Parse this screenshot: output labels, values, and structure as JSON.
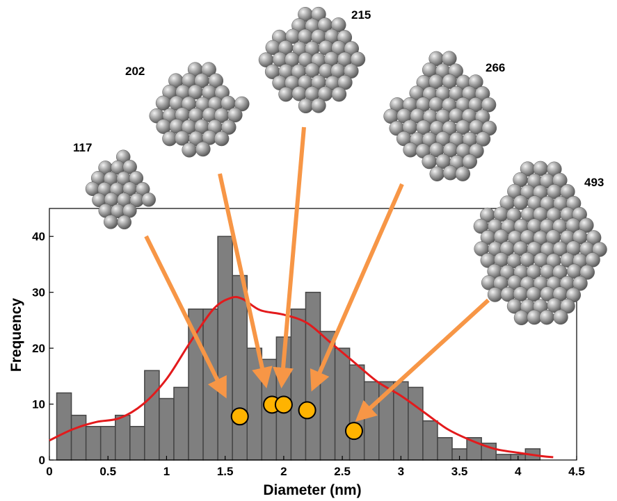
{
  "chart_data": {
    "type": "bar",
    "xlabel": "Diameter (nm)",
    "ylabel": "Frequency",
    "xlim": [
      0,
      4.5
    ],
    "ylim": [
      0,
      45
    ],
    "x_ticks": [
      "0",
      "0.5",
      "1",
      "1.5",
      "2",
      "2.5",
      "3",
      "3.5",
      "4",
      "4.5"
    ],
    "y_ticks": [
      "0",
      "10",
      "20",
      "30",
      "40"
    ],
    "bin_width": 0.125,
    "bins": [
      {
        "x": 0.125,
        "count": 12
      },
      {
        "x": 0.25,
        "count": 8
      },
      {
        "x": 0.375,
        "count": 6
      },
      {
        "x": 0.5,
        "count": 6
      },
      {
        "x": 0.625,
        "count": 8
      },
      {
        "x": 0.75,
        "count": 6
      },
      {
        "x": 0.875,
        "count": 16
      },
      {
        "x": 1.0,
        "count": 11
      },
      {
        "x": 1.125,
        "count": 13
      },
      {
        "x": 1.25,
        "count": 27
      },
      {
        "x": 1.375,
        "count": 27
      },
      {
        "x": 1.5,
        "count": 40
      },
      {
        "x": 1.625,
        "count": 33
      },
      {
        "x": 1.75,
        "count": 20
      },
      {
        "x": 1.875,
        "count": 18
      },
      {
        "x": 2.0,
        "count": 22
      },
      {
        "x": 2.125,
        "count": 27
      },
      {
        "x": 2.25,
        "count": 30
      },
      {
        "x": 2.375,
        "count": 23
      },
      {
        "x": 2.5,
        "count": 20
      },
      {
        "x": 2.625,
        "count": 17
      },
      {
        "x": 2.75,
        "count": 14
      },
      {
        "x": 2.875,
        "count": 14
      },
      {
        "x": 3.0,
        "count": 14
      },
      {
        "x": 3.125,
        "count": 13
      },
      {
        "x": 3.25,
        "count": 7
      },
      {
        "x": 3.375,
        "count": 4
      },
      {
        "x": 3.5,
        "count": 2
      },
      {
        "x": 3.625,
        "count": 4
      },
      {
        "x": 3.75,
        "count": 3
      },
      {
        "x": 3.875,
        "count": 1
      },
      {
        "x": 4.0,
        "count": 1
      },
      {
        "x": 4.125,
        "count": 2
      }
    ],
    "fit_curve": [
      [
        0.0,
        3.5
      ],
      [
        0.2,
        5.5
      ],
      [
        0.4,
        6.8
      ],
      [
        0.6,
        7.5
      ],
      [
        0.8,
        10
      ],
      [
        1.0,
        14.5
      ],
      [
        1.2,
        21
      ],
      [
        1.4,
        27
      ],
      [
        1.55,
        29
      ],
      [
        1.65,
        28.8
      ],
      [
        1.8,
        26.8
      ],
      [
        2.0,
        26
      ],
      [
        2.2,
        24.5
      ],
      [
        2.4,
        21
      ],
      [
        2.6,
        17.5
      ],
      [
        2.8,
        14
      ],
      [
        3.0,
        11.5
      ],
      [
        3.2,
        8.5
      ],
      [
        3.4,
        5.5
      ],
      [
        3.6,
        3.5
      ],
      [
        3.8,
        2.0
      ],
      [
        4.0,
        1.3
      ],
      [
        4.2,
        0.7
      ],
      [
        4.3,
        0.5
      ]
    ],
    "points": [
      {
        "x": 1.625,
        "y": 7.8,
        "label": "117"
      },
      {
        "x": 1.9,
        "y": 9.9,
        "label": "202"
      },
      {
        "x": 2.0,
        "y": 9.9,
        "label": "215"
      },
      {
        "x": 2.2,
        "y": 8.9,
        "label": "266"
      },
      {
        "x": 2.6,
        "y": 5.2,
        "label": "493"
      }
    ],
    "colors": {
      "bar_fill": "#7f7f7f",
      "bar_stroke": "#444444",
      "curve": "#e31a1c",
      "point_fill": "#ffb300",
      "point_stroke": "#000000",
      "arrow": "#f79646",
      "atom": "#8c8c8c"
    }
  },
  "clusters": [
    {
      "label": "117"
    },
    {
      "label": "202"
    },
    {
      "label": "215"
    },
    {
      "label": "266"
    },
    {
      "label": "493"
    }
  ]
}
